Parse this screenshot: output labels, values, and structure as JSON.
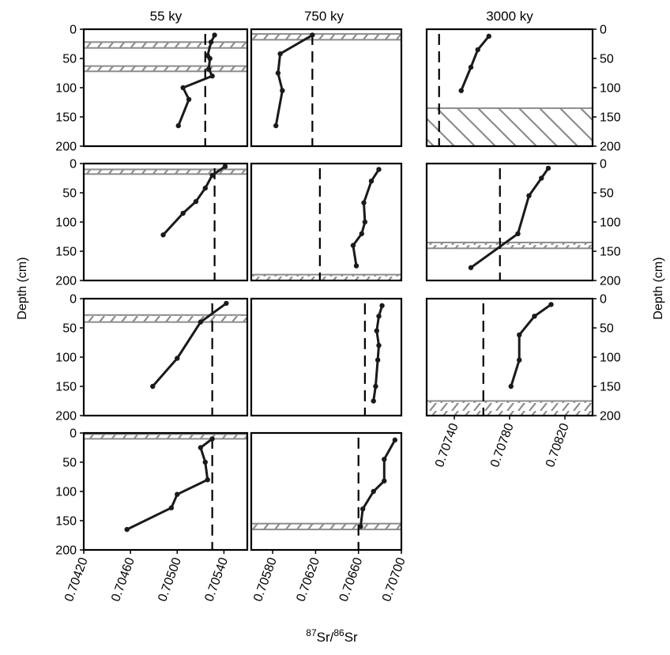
{
  "figure": {
    "x_axis_title": "87Sr/86Sr",
    "x_axis_title_parts": {
      "sup1": "87",
      "base1": "Sr/",
      "sup2": "86",
      "base2": "Sr"
    },
    "y_axis_title_left": "Depth (cm)",
    "y_axis_title_right": "Depth (cm)",
    "columns": [
      {
        "title": "55 ky",
        "xlim": [
          0.7042,
          0.7056
        ],
        "xticks": [
          "0.70420",
          "0.70460",
          "0.70500",
          "0.70540"
        ]
      },
      {
        "title": "750 ky",
        "xlim": [
          0.7056,
          0.707
        ],
        "xticks": [
          "0.70580",
          "0.70620",
          "0.70660",
          "0.70700"
        ]
      },
      {
        "title": "3000 ky",
        "xlim": [
          0.7072,
          0.7084
        ],
        "xticks": [
          "0.70740",
          "0.70780",
          "0.70820"
        ]
      }
    ],
    "yticks": [
      "0",
      "50",
      "100",
      "150",
      "200"
    ],
    "line_color": "#1a1a1a",
    "band_color": "#8c8c8c"
  },
  "chart_data": [
    {
      "type": "line",
      "column": 0,
      "row": 0,
      "ylim": [
        200,
        0
      ],
      "x": [
        0.70532,
        0.70529,
        0.70526,
        0.70528,
        0.70527,
        0.7053,
        0.70505,
        0.7051,
        0.70501
      ],
      "y": [
        10,
        22,
        45,
        50,
        68,
        80,
        100,
        120,
        165
      ],
      "reference_x": 0.70524,
      "bands": [
        [
          22,
          32
        ],
        [
          63,
          72
        ]
      ]
    },
    {
      "type": "line",
      "column": 1,
      "row": 0,
      "ylim": [
        200,
        0
      ],
      "x": [
        0.70617,
        0.70587,
        0.70585,
        0.70589,
        0.70583
      ],
      "y": [
        10,
        42,
        75,
        105,
        165
      ],
      "reference_x": 0.70617,
      "bands": [
        [
          8,
          18
        ]
      ]
    },
    {
      "type": "line",
      "column": 2,
      "row": 0,
      "ylim": [
        200,
        0
      ],
      "x": [
        0.70765,
        0.70757,
        0.70752,
        0.70745
      ],
      "y": [
        12,
        35,
        65,
        105
      ],
      "reference_x": 0.70729,
      "bands": [
        [
          135,
          200
        ]
      ]
    },
    {
      "type": "line",
      "column": 0,
      "row": 1,
      "ylim": [
        200,
        0
      ],
      "x": [
        0.70541,
        0.7053,
        0.70524,
        0.70516,
        0.70505,
        0.70488
      ],
      "y": [
        5,
        20,
        42,
        65,
        85,
        122
      ],
      "reference_x": 0.70532,
      "bands": [
        [
          10,
          18
        ]
      ]
    },
    {
      "type": "line",
      "column": 1,
      "row": 1,
      "ylim": [
        200,
        0
      ],
      "x": [
        0.70679,
        0.70672,
        0.70665,
        0.70666,
        0.70663,
        0.70655,
        0.70658
      ],
      "y": [
        10,
        30,
        67,
        100,
        120,
        140,
        175
      ],
      "reference_x": 0.70624,
      "bands": [
        [
          190,
          200
        ]
      ]
    },
    {
      "type": "line",
      "column": 2,
      "row": 1,
      "ylim": [
        200,
        0
      ],
      "x": [
        0.70808,
        0.70803,
        0.70794,
        0.70786,
        0.70752
      ],
      "y": [
        8,
        25,
        55,
        120,
        178
      ],
      "reference_x": 0.70773,
      "bands": [
        [
          135,
          145
        ]
      ]
    },
    {
      "type": "line",
      "column": 0,
      "row": 2,
      "ylim": [
        200,
        0
      ],
      "x": [
        0.70542,
        0.7052,
        0.705,
        0.70479
      ],
      "y": [
        8,
        40,
        102,
        150
      ],
      "reference_x": 0.7053,
      "bands": [
        [
          28,
          40
        ]
      ]
    },
    {
      "type": "line",
      "column": 1,
      "row": 2,
      "ylim": [
        200,
        0
      ],
      "x": [
        0.70682,
        0.70679,
        0.70677,
        0.70679,
        0.70678,
        0.70676,
        0.70674
      ],
      "y": [
        12,
        30,
        55,
        80,
        105,
        150,
        175
      ],
      "reference_x": 0.70666,
      "bands": []
    },
    {
      "type": "line",
      "column": 2,
      "row": 2,
      "ylim": [
        200,
        0
      ],
      "x": [
        0.7081,
        0.70798,
        0.70787,
        0.70787,
        0.70781
      ],
      "y": [
        10,
        30,
        62,
        105,
        150
      ],
      "reference_x": 0.70761,
      "bands": [
        [
          175,
          200
        ]
      ]
    },
    {
      "type": "line",
      "column": 0,
      "row": 3,
      "ylim": [
        200,
        0
      ],
      "x": [
        0.7053,
        0.7052,
        0.70524,
        0.70526,
        0.705,
        0.70495,
        0.70457
      ],
      "y": [
        10,
        25,
        50,
        80,
        105,
        128,
        165
      ],
      "reference_x": 0.7053,
      "bands": [
        [
          2,
          10
        ]
      ]
    },
    {
      "type": "line",
      "column": 1,
      "row": 3,
      "ylim": [
        200,
        0
      ],
      "x": [
        0.70694,
        0.70684,
        0.70684,
        0.70674,
        0.70664,
        0.70662
      ],
      "y": [
        12,
        45,
        82,
        100,
        130,
        160
      ],
      "reference_x": 0.7066,
      "bands": [
        [
          155,
          165
        ]
      ]
    }
  ]
}
